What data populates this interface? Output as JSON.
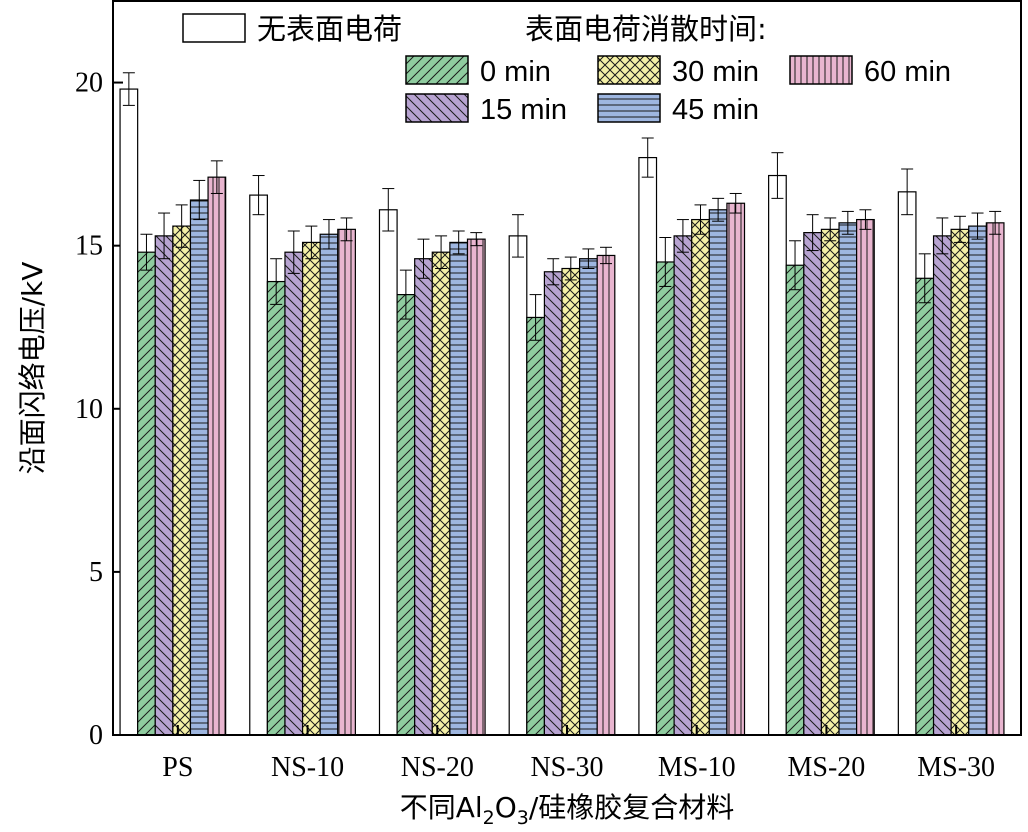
{
  "chart_data": {
    "type": "bar",
    "title": "",
    "xlabel": "不同Al2O3/硅橡胶复合材料",
    "xlabel_parts": {
      "prefix": "不同Al",
      "sub1": "2",
      "mid": "O",
      "sub2": "3",
      "suffix": "/硅橡胶复合材料"
    },
    "ylabel": "沿面闪络电压/kV",
    "ylim": [
      0,
      22.5
    ],
    "yticks": [
      0,
      5,
      10,
      15,
      20
    ],
    "yticklabels": [
      "0",
      "5",
      "10",
      "15",
      "20"
    ],
    "categories": [
      "PS",
      "NS-10",
      "NS-20",
      "NS-30",
      "MS-10",
      "MS-20",
      "MS-30"
    ],
    "legend_title": "表面电荷消散时间:",
    "series": [
      {
        "name": "无表面电荷",
        "color": "#ffffff",
        "pattern": "none",
        "values": [
          19.8,
          16.55,
          16.1,
          15.3,
          17.7,
          17.15,
          16.65
        ],
        "errors": [
          0.5,
          0.6,
          0.65,
          0.65,
          0.6,
          0.7,
          0.7
        ]
      },
      {
        "name": "0 min",
        "color": "#8fcc9f",
        "pattern": "diag",
        "values": [
          14.8,
          13.9,
          13.5,
          12.8,
          14.5,
          14.4,
          14.0
        ],
        "errors": [
          0.55,
          0.7,
          0.75,
          0.7,
          0.75,
          0.75,
          0.75
        ]
      },
      {
        "name": "15 min",
        "color": "#b7a3d1",
        "pattern": "backdiag",
        "values": [
          15.3,
          14.8,
          14.6,
          14.2,
          15.3,
          15.4,
          15.3
        ],
        "errors": [
          0.7,
          0.65,
          0.6,
          0.4,
          0.5,
          0.55,
          0.55
        ]
      },
      {
        "name": "30 min",
        "color": "#f4f0a6",
        "pattern": "cross",
        "values": [
          15.6,
          15.1,
          14.8,
          14.3,
          15.8,
          15.5,
          15.5
        ],
        "errors": [
          0.65,
          0.5,
          0.5,
          0.35,
          0.45,
          0.35,
          0.4
        ]
      },
      {
        "name": "45 min",
        "color": "#9eb6e0",
        "pattern": "horiz",
        "values": [
          16.4,
          15.35,
          15.1,
          14.6,
          16.1,
          15.7,
          15.6
        ],
        "errors": [
          0.6,
          0.45,
          0.35,
          0.3,
          0.35,
          0.35,
          0.4
        ]
      },
      {
        "name": "60 min",
        "color": "#e8b5cf",
        "pattern": "vert",
        "values": [
          17.1,
          15.5,
          15.2,
          14.7,
          16.3,
          15.8,
          15.7
        ],
        "errors": [
          0.5,
          0.35,
          0.2,
          0.25,
          0.3,
          0.3,
          0.35
        ]
      }
    ]
  }
}
